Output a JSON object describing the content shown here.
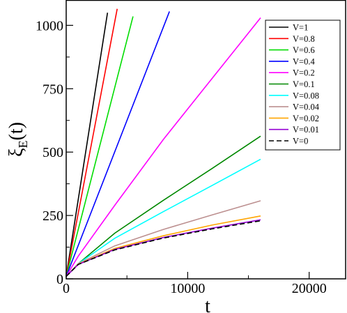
{
  "chart_data": {
    "type": "line",
    "xlabel": "t",
    "ylabel": {
      "main": "ξ",
      "sub": "E",
      "suffix": "(t)"
    },
    "xlim": [
      0,
      23000
    ],
    "ylim": [
      0,
      1100
    ],
    "xticks": [
      0,
      10000,
      20000
    ],
    "xtick_labels": [
      "0",
      "10000",
      "20000"
    ],
    "yticks": [
      0,
      250,
      500,
      750,
      1000
    ],
    "ytick_labels": [
      "0",
      "250",
      "500",
      "750",
      "1000"
    ],
    "legend_position": "top-right",
    "grid": false,
    "series": [
      {
        "name": "V=1",
        "color": "#000000",
        "dashed": false,
        "x": [
          0,
          3400
        ],
        "y": [
          10,
          1050
        ]
      },
      {
        "name": "V=0.8",
        "color": "#ff0000",
        "dashed": false,
        "x": [
          0,
          4200
        ],
        "y": [
          10,
          1065
        ]
      },
      {
        "name": "V=0.6",
        "color": "#00dd00",
        "dashed": false,
        "x": [
          0,
          5500
        ],
        "y": [
          10,
          1035
        ]
      },
      {
        "name": "V=0.4",
        "color": "#0000ff",
        "dashed": false,
        "x": [
          0,
          8500
        ],
        "y": [
          10,
          1055
        ]
      },
      {
        "name": "V=0.2",
        "color": "#ff00ff",
        "dashed": false,
        "x": [
          0,
          1000,
          4000,
          8000,
          12000,
          16000
        ],
        "y": [
          10,
          90,
          290,
          550,
          790,
          1030
        ]
      },
      {
        "name": "V=0.1",
        "color": "#008800",
        "dashed": false,
        "x": [
          0,
          1000,
          4000,
          8000,
          12000,
          16000
        ],
        "y": [
          10,
          60,
          180,
          310,
          435,
          563
        ]
      },
      {
        "name": "V=0.08",
        "color": "#00ffff",
        "dashed": false,
        "x": [
          0,
          1000,
          4000,
          8000,
          12000,
          16000
        ],
        "y": [
          10,
          60,
          160,
          265,
          368,
          472
        ]
      },
      {
        "name": "V=0.04",
        "color": "#bc8f8f",
        "dashed": false,
        "x": [
          0,
          1000,
          4000,
          8000,
          12000,
          16000
        ],
        "y": [
          10,
          60,
          130,
          195,
          252,
          308
        ]
      },
      {
        "name": "V=0.02",
        "color": "#ffa500",
        "dashed": false,
        "x": [
          0,
          1000,
          4000,
          8000,
          12000,
          16000
        ],
        "y": [
          10,
          58,
          120,
          170,
          212,
          248
        ]
      },
      {
        "name": "V=0.01",
        "color": "#9400d3",
        "dashed": false,
        "x": [
          0,
          1000,
          4000,
          8000,
          12000,
          16000
        ],
        "y": [
          10,
          57,
          116,
          163,
          200,
          233
        ]
      },
      {
        "name": "V=0",
        "color": "#000000",
        "dashed": true,
        "x": [
          0,
          1000,
          4000,
          8000,
          12000,
          16000
        ],
        "y": [
          10,
          57,
          114,
          161,
          197,
          229
        ]
      }
    ]
  }
}
